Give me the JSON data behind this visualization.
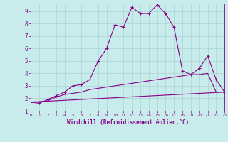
{
  "xlabel": "Windchill (Refroidissement éolien,°C)",
  "bg_color": "#c8ecec",
  "line_color": "#880088",
  "grid_color": "#aad4d4",
  "axis_color": "#660066",
  "x_ticks": [
    0,
    1,
    2,
    3,
    4,
    5,
    6,
    7,
    8,
    9,
    10,
    11,
    12,
    13,
    14,
    15,
    16,
    17,
    18,
    19,
    20,
    21,
    22,
    23
  ],
  "y_ticks": [
    1,
    2,
    3,
    4,
    5,
    6,
    7,
    8,
    9
  ],
  "xlim": [
    0,
    23
  ],
  "ylim": [
    1,
    9.6
  ],
  "curve1_x": [
    0,
    1,
    2,
    3,
    4,
    5,
    6,
    7,
    8,
    9,
    10,
    11,
    12,
    13,
    14,
    15,
    16,
    17,
    18,
    19,
    20,
    21,
    22,
    23
  ],
  "curve1_y": [
    1.7,
    1.6,
    1.9,
    2.2,
    2.5,
    3.0,
    3.1,
    3.5,
    5.0,
    6.0,
    7.9,
    7.7,
    9.3,
    8.8,
    8.8,
    9.5,
    8.8,
    7.7,
    4.2,
    3.9,
    4.4,
    5.4,
    3.5,
    2.5
  ],
  "curve2_x": [
    0,
    1,
    2,
    3,
    4,
    5,
    6,
    7,
    8,
    9,
    10,
    11,
    12,
    13,
    14,
    15,
    16,
    17,
    18,
    19,
    20,
    21,
    22,
    23
  ],
  "curve2_y": [
    1.7,
    1.7,
    1.8,
    2.1,
    2.3,
    2.4,
    2.5,
    2.7,
    2.8,
    2.9,
    3.0,
    3.1,
    3.2,
    3.3,
    3.4,
    3.5,
    3.6,
    3.7,
    3.8,
    3.9,
    3.9,
    4.0,
    2.5,
    2.5
  ],
  "curve3_x": [
    0,
    23
  ],
  "curve3_y": [
    1.7,
    2.5
  ]
}
